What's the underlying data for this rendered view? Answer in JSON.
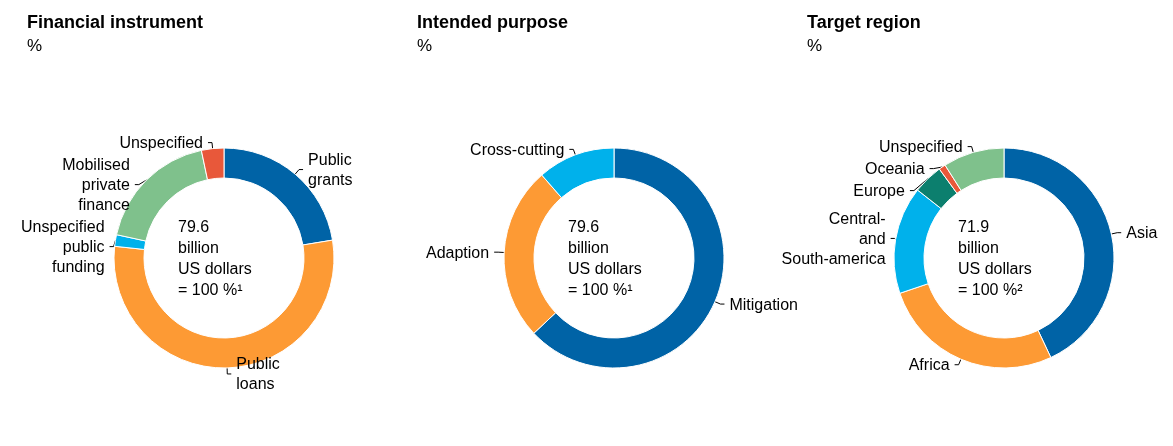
{
  "chart_data": [
    {
      "type": "donut",
      "title": "Financial instrument",
      "subtitle": "%",
      "categories": [
        "Public grants",
        "Public loans",
        "Unspecified public funding",
        "Mobilised private finance",
        "Unspecified"
      ],
      "values": [
        22.4,
        54.3,
        1.7,
        18.3,
        3.3
      ],
      "colors": [
        "#0063a6",
        "#fd9a34",
        "#00b1eb",
        "#7fc18c",
        "#e8583a"
      ],
      "annotations": [
        "79.6\nbillion\nUS dollars\n= 100 %¹"
      ],
      "legend": false
    },
    {
      "type": "donut",
      "title": "Intended purpose",
      "subtitle": "%",
      "categories": [
        "Mitigation",
        "Adaption",
        "Cross-cutting"
      ],
      "values": [
        63.0,
        25.6,
        11.4
      ],
      "colors": [
        "#0063a6",
        "#fd9a34",
        "#00b1eb"
      ],
      "annotations": [
        "79.6\nbillion\nUS dollars\n= 100 %¹"
      ],
      "legend": false
    },
    {
      "type": "donut",
      "title": "Target region",
      "subtitle": "%",
      "categories": [
        "Asia",
        "Africa",
        "Central- and South-america",
        "Europe",
        "Oceania",
        "Unspecified"
      ],
      "values": [
        43.0,
        26.8,
        15.8,
        4.4,
        1.0,
        9.0
      ],
      "colors": [
        "#0063a6",
        "#fd9a34",
        "#00b1eb",
        "#0c7f6e",
        "#e8583a",
        "#7fc18c"
      ],
      "annotations": [
        "71.9\nbillion\nUS dollars\n= 100 %²"
      ],
      "legend": false
    }
  ]
}
